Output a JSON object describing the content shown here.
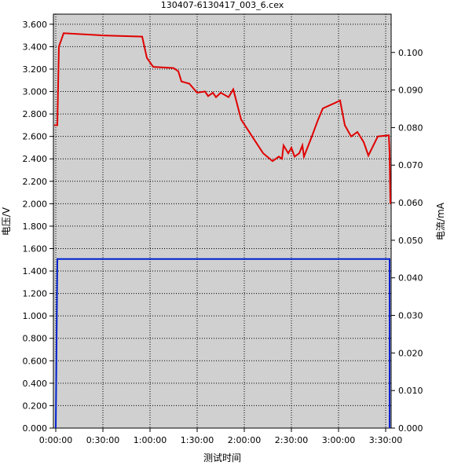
{
  "chart_data": {
    "type": "line",
    "title": "130407-6130417_003_6.cex",
    "x_label": "测试时间",
    "y_label": "电压/V",
    "y2_label": "电流/mA",
    "xlim": [
      -1.5,
      213.5
    ],
    "xticks": [
      {
        "value": 0,
        "label": "0:00:00"
      },
      {
        "value": 30,
        "label": "0:30:00"
      },
      {
        "value": 60,
        "label": "1:00:00"
      },
      {
        "value": 90,
        "label": "1:30:00"
      },
      {
        "value": 120,
        "label": "2:00:00"
      },
      {
        "value": 150,
        "label": "2:30:00"
      },
      {
        "value": 180,
        "label": "3:00:00"
      },
      {
        "value": 210,
        "label": "3:30:00"
      }
    ],
    "ylim": [
      0,
      3.69
    ],
    "yticks": [
      {
        "value": 0,
        "label": "0.000"
      },
      {
        "value": 0.2,
        "label": "0.200"
      },
      {
        "value": 0.4,
        "label": "0.400"
      },
      {
        "value": 0.6,
        "label": "0.600"
      },
      {
        "value": 0.8,
        "label": "0.800"
      },
      {
        "value": 1,
        "label": "1.000"
      },
      {
        "value": 1.2,
        "label": "1.200"
      },
      {
        "value": 1.4,
        "label": "1.400"
      },
      {
        "value": 1.6,
        "label": "1.600"
      },
      {
        "value": 1.8,
        "label": "1.800"
      },
      {
        "value": 2,
        "label": "2.000"
      },
      {
        "value": 2.2,
        "label": "2.200"
      },
      {
        "value": 2.4,
        "label": "2.400"
      },
      {
        "value": 2.6,
        "label": "2.600"
      },
      {
        "value": 2.8,
        "label": "2.800"
      },
      {
        "value": 3,
        "label": "3.000"
      },
      {
        "value": 3.2,
        "label": "3.200"
      },
      {
        "value": 3.4,
        "label": "3.400"
      },
      {
        "value": 3.6,
        "label": "3.600"
      }
    ],
    "y2lim": [
      0,
      0.1102
    ],
    "y2ticks": [
      {
        "value": 0,
        "label": "0.000"
      },
      {
        "value": 0.01,
        "label": "0.010"
      },
      {
        "value": 0.02,
        "label": "0.020"
      },
      {
        "value": 0.03,
        "label": "0.030"
      },
      {
        "value": 0.04,
        "label": "0.040"
      },
      {
        "value": 0.05,
        "label": "0.050"
      },
      {
        "value": 0.06,
        "label": "0.060"
      },
      {
        "value": 0.07,
        "label": "0.070"
      },
      {
        "value": 0.08,
        "label": "0.080"
      },
      {
        "value": 0.09,
        "label": "0.090"
      },
      {
        "value": 0.1,
        "label": "0.100"
      }
    ],
    "grid": true,
    "background": "#d0d0d0",
    "series": [
      {
        "color": "#e00000",
        "x": [
          -1,
          1,
          2,
          5,
          30,
          55,
          58,
          62,
          75,
          78,
          80,
          85,
          90,
          95,
          97,
          100,
          102,
          105,
          110,
          113,
          118,
          125,
          132,
          138,
          142,
          144,
          145,
          148,
          150,
          152,
          155,
          157,
          158,
          163,
          167,
          170,
          178,
          181,
          184,
          188,
          192,
          196,
          199,
          205,
          212,
          212.5,
          213
        ],
        "values": [
          2.7,
          2.7,
          3.4,
          3.52,
          3.5,
          3.49,
          3.3,
          3.22,
          3.21,
          3.18,
          3.09,
          3.07,
          2.99,
          3.0,
          2.96,
          2.99,
          2.95,
          2.99,
          2.95,
          3.02,
          2.75,
          2.6,
          2.45,
          2.38,
          2.42,
          2.4,
          2.52,
          2.45,
          2.5,
          2.42,
          2.45,
          2.52,
          2.42,
          2.6,
          2.75,
          2.85,
          2.9,
          2.92,
          2.7,
          2.6,
          2.64,
          2.55,
          2.43,
          2.6,
          2.61,
          2.45,
          2.0
        ]
      },
      {
        "color": "#0020d0",
        "axis": "y2",
        "x": [
          0,
          0,
          1,
          212.5,
          212.5
        ],
        "values": [
          0,
          0,
          0.045,
          0.045,
          0
        ]
      }
    ]
  }
}
